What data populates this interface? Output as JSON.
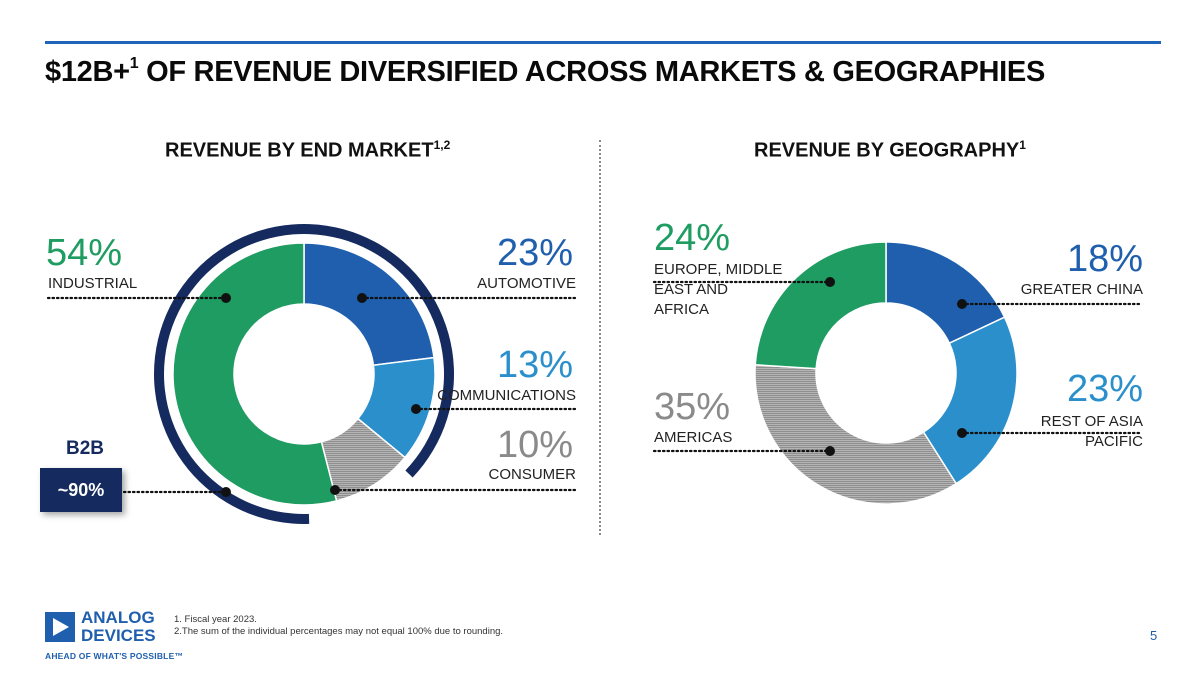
{
  "slide": {
    "title_main": "$12B+",
    "title_sup": "1",
    "title_rest": " OF REVENUE DIVERSIFIED ACROSS MARKETS & GEOGRAPHIES",
    "page_number": "5"
  },
  "b2b": {
    "label": "B2B",
    "value": "~90%"
  },
  "footnotes": [
    "1. Fiscal year 2023.",
    "2.The sum of the individual percentages may not equal 100% due to rounding."
  ],
  "logo": {
    "line1": "ANALOG",
    "line2": "DEVICES",
    "tagline": "AHEAD OF WHAT'S POSSIBLE™"
  },
  "colors": {
    "green": "#1e9c61",
    "blue_dark": "#1f5fae",
    "blue_mid": "#2a8fcb",
    "gray": "#9b9b9b",
    "navy": "#152a5e"
  },
  "chart_data": [
    {
      "type": "pie",
      "title": "REVENUE BY END MARKET",
      "title_sup": "1,2",
      "categories": [
        "INDUSTRIAL",
        "AUTOMOTIVE",
        "COMMUNICATIONS",
        "CONSUMER"
      ],
      "values": [
        54,
        23,
        13,
        10
      ],
      "value_labels": [
        "54%",
        "23%",
        "13%",
        "10%"
      ],
      "series_colors": [
        "#1e9c61",
        "#1f5fae",
        "#2a8fcb",
        "#9b9b9b"
      ]
    },
    {
      "type": "pie",
      "title": "REVENUE BY GEOGRAPHY",
      "title_sup": "1",
      "categories": [
        "GREATER CHINA",
        "REST OF ASIA PACIFIC",
        "AMERICAS",
        "EUROPE, MIDDLE EAST AND AFRICA"
      ],
      "values": [
        18,
        23,
        35,
        24
      ],
      "value_labels": [
        "18%",
        "23%",
        "35%",
        "24%"
      ],
      "series_colors": [
        "#1f5fae",
        "#2a8fcb",
        "#9b9b9b",
        "#1e9c61"
      ]
    }
  ]
}
